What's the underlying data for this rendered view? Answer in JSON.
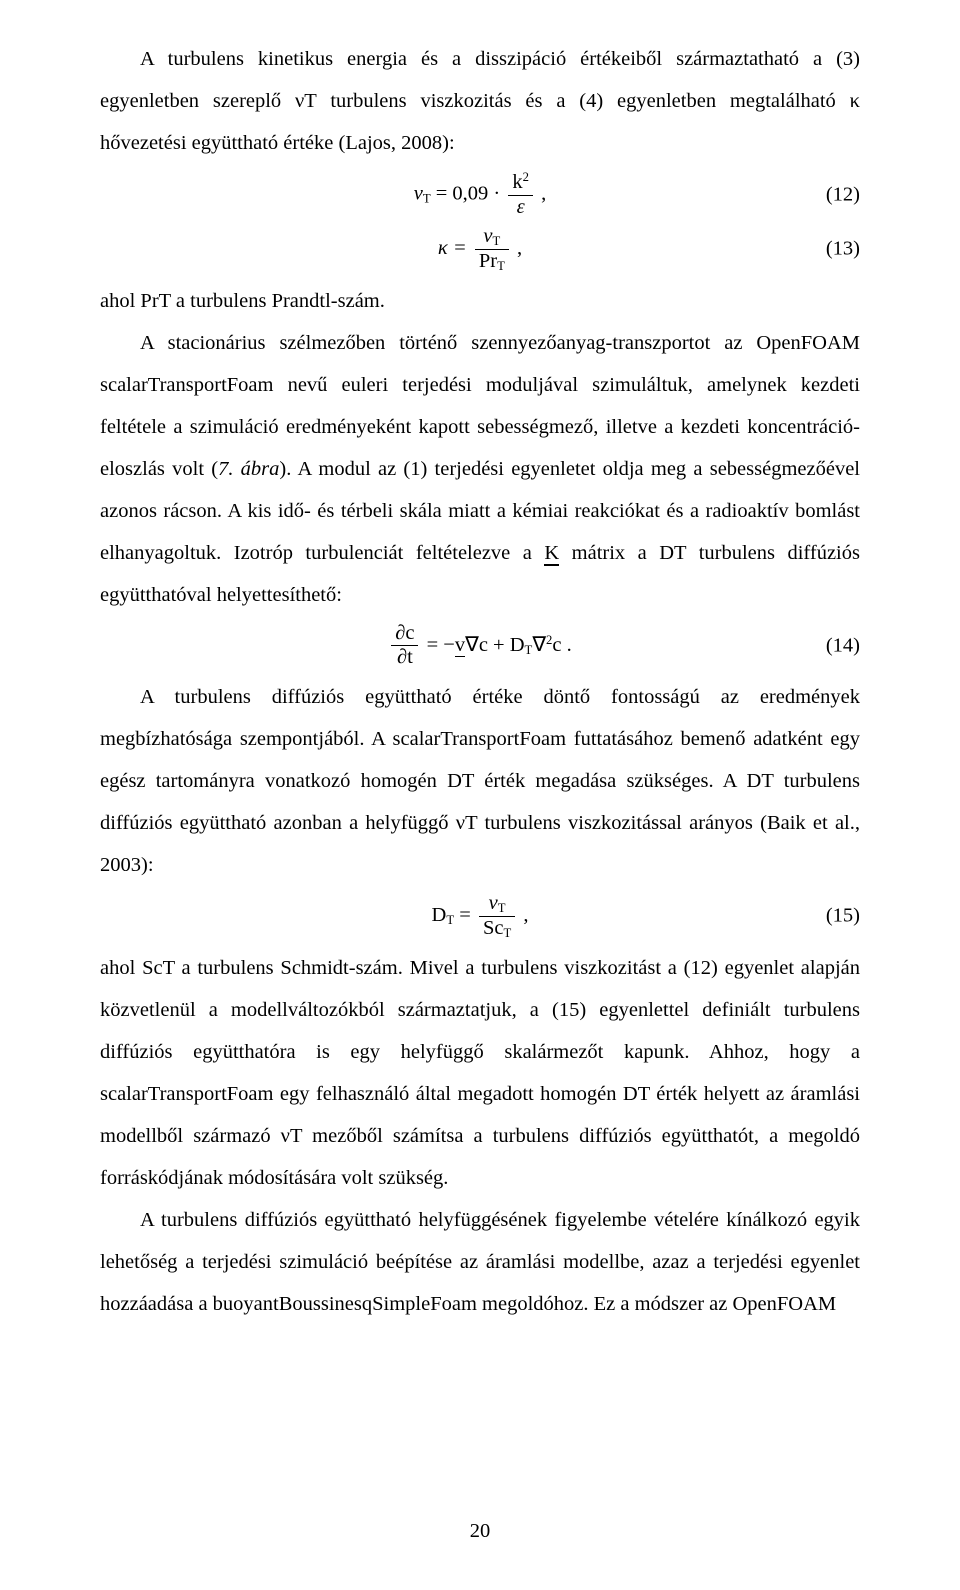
{
  "para1": "A turbulens kinetikus energia és a disszipáció értékeiből származtatható a (3) egyenletben szereplő νT turbulens viszkozitás és a (4) egyenletben megtalálható κ hővezetési együttható értéke (Lajos, 2008):",
  "eq12": {
    "lhs": "ν",
    "lhs_sub": "T",
    "eq": " = 0,09 · ",
    "num": "k",
    "num_sup": "2",
    "den": "ε",
    "tail": " ,",
    "num_label": "(12)"
  },
  "eq13": {
    "lhs": "κ = ",
    "num": "ν",
    "num_sub": "T",
    "den_pre": "Pr",
    "den_sub": "T",
    "tail": " ,",
    "num_label": "(13)"
  },
  "line_pr": "ahol PrT a turbulens Prandtl-szám.",
  "para2a": "A stacionárius szélmezőben történő szennyezőanyag-transzportot az OpenFOAM scalarTransportFoam nevű euleri terjedési moduljával szimuláltuk, amelynek kezdeti feltétele a szimuláció eredményeként kapott sebességmező, illetve a kezdeti koncentráció-eloszlás volt (",
  "para2_fig": "7. ábra",
  "para2b": "). A modul az (1) terjedési egyenletet oldja meg a sebességmezőével azonos rácson. A kis idő- és térbeli skála miatt a kémiai reakciókat és a radioaktív bomlást elhanyagoltuk. Izotróp turbulenciát feltételezve a ",
  "para2_K": "K",
  "para2c": " mátrix a DT turbulens diffúziós együtthatóval helyettesíthető:",
  "eq14": {
    "frac_num_a": "∂c",
    "frac_den_a": "∂t",
    "mid1": " = −",
    "v": "v",
    "mid2": "∇c + D",
    "sub": "T",
    "mid3": "∇",
    "sup": "2",
    "mid4": "c .",
    "num_label": "(14)"
  },
  "para3": "A turbulens diffúziós együttható értéke döntő fontosságú az eredmények megbízhatósága szempontjából. A scalarTransportFoam futtatásához bemenő adatként egy egész tartományra vonatkozó homogén DT érték megadása szükséges. A DT turbulens diffúziós együttható azonban a helyfüggő νT turbulens viszkozitással arányos (Baik et al., 2003):",
  "eq15": {
    "lhs": "D",
    "lhs_sub": "T",
    "eq": " = ",
    "num": "ν",
    "num_sub": "T",
    "den_pre": "Sc",
    "den_sub": "T",
    "tail": " ,",
    "num_label": "(15)"
  },
  "para4": "ahol ScT a turbulens Schmidt-szám. Mivel a turbulens viszkozitást a (12) egyenlet alapján közvetlenül a modellváltozókból származtatjuk, a (15) egyenlettel definiált turbulens diffúziós együtthatóra is egy helyfüggő skalármezőt kapunk. Ahhoz, hogy a scalarTransportFoam egy felhasználó által megadott homogén DT érték helyett az áramlási modellből származó νT mezőből számítsa a turbulens diffúziós együtthatót, a megoldó forráskódjának módosítására volt szükség.",
  "para5": "A turbulens diffúziós együttható helyfüggésének figyelembe vételére kínálkozó egyik lehetőség a terjedési szimuláció beépítése az áramlási modellbe, azaz a terjedési egyenlet hozzáadása a buoyantBoussinesqSimpleFoam megoldóhoz. Ez a módszer az OpenFOAM",
  "pagenum": "20"
}
